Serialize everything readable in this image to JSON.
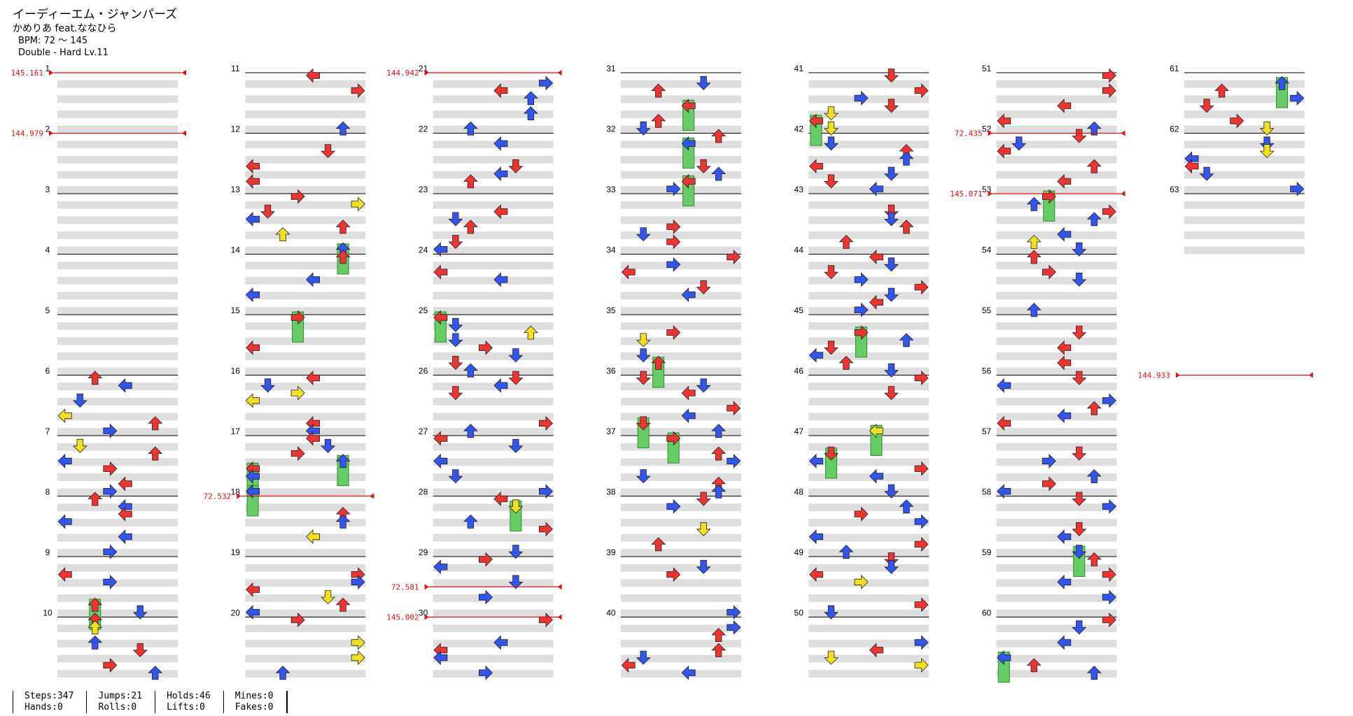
{
  "song": {
    "title": "イーディーエム・ジャンパーズ",
    "artist": "かめりあ feat.ななひら",
    "bpm": "BPM: 72 ～ 145",
    "difficulty": "Double - Hard Lv.11"
  },
  "stats": [
    {
      "line1": "Steps:347",
      "line2": "Hands:0"
    },
    {
      "line1": "Jumps:21",
      "line2": "Rolls:0"
    },
    {
      "line1": "Holds:46",
      "line2": "Lifts:0"
    },
    {
      "line1": "Mines:0",
      "line2": "Fakes:0"
    }
  ],
  "chart_data": {
    "type": "step-chart",
    "columns": 7,
    "measures_per_column": 10,
    "total_measures": 63,
    "colors": {
      "quarter": "#ee3333",
      "eighth": "#3355ee",
      "sixteenth": "#f0e020",
      "hold": "#66cc66",
      "bpm_marker": "#dd1111",
      "band": "#dedede"
    },
    "bpm_changes": [
      {
        "measure": 1,
        "label": "145.161"
      },
      {
        "measure": 2,
        "label": "144.979"
      },
      {
        "measure": 18,
        "label": "72.532"
      },
      {
        "measure": 21,
        "label": "144.942"
      },
      {
        "measure": 29.5,
        "label": "72.581"
      },
      {
        "measure": 30,
        "label": "145.002"
      },
      {
        "measure": 52,
        "label": "72.435"
      },
      {
        "measure": 53,
        "label": "145.071"
      },
      {
        "measure": 66,
        "label": "144.933"
      }
    ]
  }
}
